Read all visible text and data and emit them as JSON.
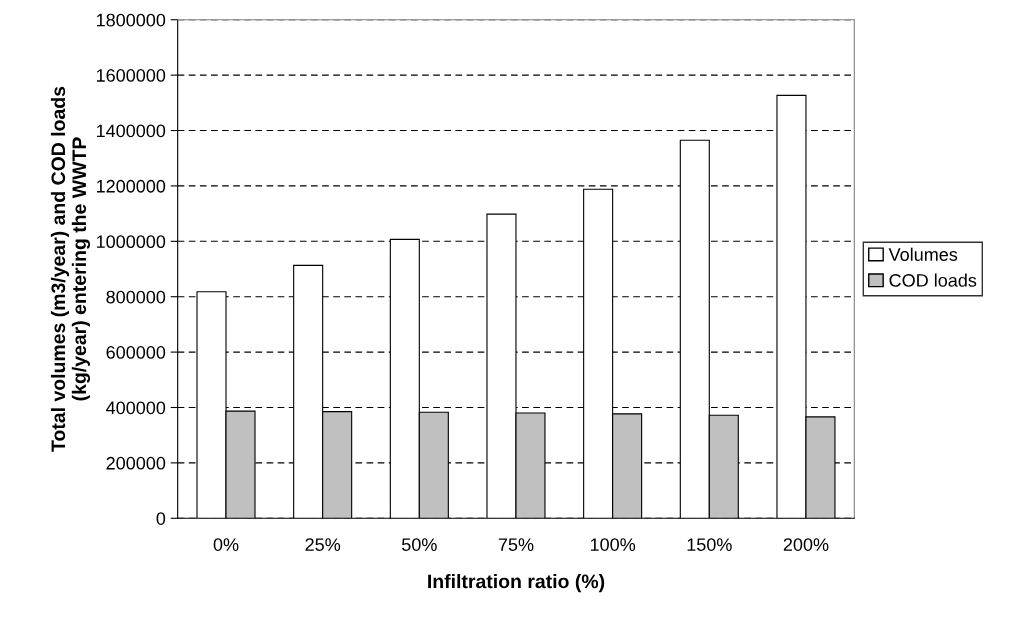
{
  "chart_data": {
    "type": "bar",
    "xlabel": "Infiltration ratio (%)",
    "ylabel": "Total volumes (m3/year) and COD loads\n(kg/year) entering the WWTP",
    "categories": [
      "0%",
      "25%",
      "50%",
      "75%",
      "100%",
      "150%",
      "200%"
    ],
    "series": [
      {
        "name": "Volumes",
        "color": "#ffffff",
        "values": [
          818000,
          913000,
          1007000,
          1098000,
          1188000,
          1365000,
          1527000
        ]
      },
      {
        "name": "COD loads",
        "color": "#c0c0c0",
        "values": [
          387000,
          385000,
          383000,
          380000,
          377000,
          372000,
          366000
        ]
      }
    ],
    "ylim": [
      0,
      1800000
    ],
    "yticks": [
      0,
      200000,
      400000,
      600000,
      800000,
      1000000,
      1200000,
      1400000,
      1600000,
      1800000
    ],
    "grid": "y",
    "legend": "right"
  }
}
